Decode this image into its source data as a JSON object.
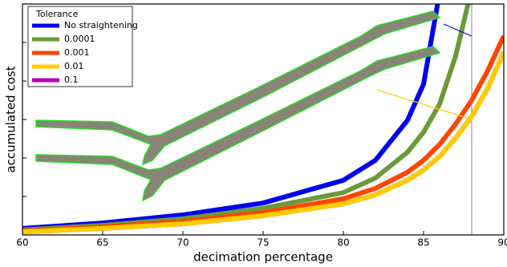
{
  "chart_data": {
    "type": "line",
    "x_label": "decimation percentage",
    "y_label": "accumulated cost",
    "legend_title": "Tolerance",
    "legend": "upper left",
    "x": [
      60,
      65,
      70,
      75,
      80,
      82,
      84,
      85,
      86,
      87,
      88,
      89,
      90
    ],
    "series": [
      {
        "name": "0.1",
        "color": "#bb00bb",
        "values": [
          0.08,
          0.17,
          0.29,
          0.5,
          0.81,
          1.04,
          1.42,
          1.69,
          2.04,
          2.52,
          3.08,
          3.81,
          4.75
        ]
      },
      {
        "name": "No straightening",
        "color": "#0000ee",
        "values": [
          0.17,
          0.31,
          0.52,
          0.83,
          1.42,
          1.94,
          2.98,
          3.92,
          6.3,
          null,
          null,
          null,
          null
        ]
      },
      {
        "name": "0.0001",
        "color": "#6a9a3a",
        "values": [
          0.13,
          0.25,
          0.42,
          0.69,
          1.1,
          1.48,
          2.15,
          2.67,
          3.4,
          4.65,
          6.4,
          null,
          null
        ]
      },
      {
        "name": "0.001",
        "color": "#ff4500",
        "values": [
          0.1,
          0.21,
          0.35,
          0.58,
          0.94,
          1.21,
          1.63,
          1.94,
          2.35,
          2.88,
          3.5,
          4.27,
          5.17
        ]
      },
      {
        "name": "0.01",
        "color": "#ffcc00",
        "values": [
          0.08,
          0.17,
          0.29,
          0.5,
          0.81,
          1.04,
          1.42,
          1.69,
          2.04,
          2.52,
          3.08,
          3.81,
          4.75
        ]
      }
    ],
    "legend_order": [
      1,
      2,
      3,
      4,
      0
    ],
    "vline_x": 88,
    "xlim": [
      60,
      90
    ],
    "xticks": [
      60,
      65,
      70,
      75,
      80,
      85,
      90
    ],
    "ylim": [
      0,
      6
    ],
    "yticks": [
      1,
      2,
      3,
      4,
      5
    ]
  }
}
